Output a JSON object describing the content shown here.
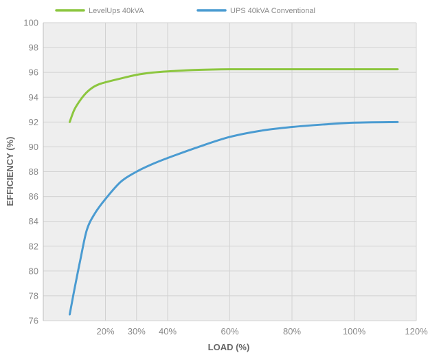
{
  "chart_data": {
    "type": "line",
    "title": "",
    "xlabel": "LOAD (%)",
    "ylabel": "EFFICIENCY (%)",
    "xlim": [
      0,
      120
    ],
    "ylim": [
      76,
      100
    ],
    "x_ticks": [
      {
        "value": 20,
        "label": "20%"
      },
      {
        "value": 30,
        "label": "30%"
      },
      {
        "value": 40,
        "label": "40%"
      },
      {
        "value": 60,
        "label": "60%"
      },
      {
        "value": 80,
        "label": "80%"
      },
      {
        "value": 100,
        "label": "100%"
      },
      {
        "value": 120,
        "label": "120%"
      }
    ],
    "y_ticks": [
      {
        "value": 76,
        "label": "76"
      },
      {
        "value": 78,
        "label": "78"
      },
      {
        "value": 80,
        "label": "80"
      },
      {
        "value": 82,
        "label": "82"
      },
      {
        "value": 84,
        "label": "84"
      },
      {
        "value": 86,
        "label": "86"
      },
      {
        "value": 88,
        "label": "88"
      },
      {
        "value": 90,
        "label": "90"
      },
      {
        "value": 92,
        "label": "92"
      },
      {
        "value": 94,
        "label": "94"
      },
      {
        "value": 96,
        "label": "96"
      },
      {
        "value": 98,
        "label": "98"
      },
      {
        "value": 100,
        "label": "100"
      }
    ],
    "grid": true,
    "legend_position": "top",
    "series": [
      {
        "name": "LevelUps  40kVA",
        "color": "#8cc63f",
        "points": [
          [
            8.5,
            92.0
          ],
          [
            10.0,
            93.0
          ],
          [
            12.0,
            93.8
          ],
          [
            14.0,
            94.4
          ],
          [
            16.0,
            94.8
          ],
          [
            18.0,
            95.05
          ],
          [
            20.0,
            95.2
          ],
          [
            24.0,
            95.45
          ],
          [
            30.0,
            95.8
          ],
          [
            35.0,
            95.98
          ],
          [
            40.0,
            96.08
          ],
          [
            50.0,
            96.2
          ],
          [
            60.0,
            96.25
          ],
          [
            70.0,
            96.25
          ],
          [
            80.0,
            96.25
          ],
          [
            90.0,
            96.25
          ],
          [
            100.0,
            96.25
          ],
          [
            114.0,
            96.25
          ]
        ]
      },
      {
        "name": "UPS 40kVA Conventional",
        "color": "#4a9bd1",
        "points": [
          [
            8.5,
            76.5
          ],
          [
            10.0,
            78.5
          ],
          [
            12.0,
            81.0
          ],
          [
            14.0,
            83.3
          ],
          [
            16.5,
            84.6
          ],
          [
            20.0,
            85.8
          ],
          [
            25.0,
            87.2
          ],
          [
            30.0,
            88.0
          ],
          [
            35.0,
            88.6
          ],
          [
            40.0,
            89.1
          ],
          [
            50.0,
            90.0
          ],
          [
            60.0,
            90.8
          ],
          [
            70.0,
            91.3
          ],
          [
            80.0,
            91.6
          ],
          [
            90.0,
            91.8
          ],
          [
            100.0,
            91.95
          ],
          [
            114.0,
            92.0
          ]
        ]
      }
    ]
  }
}
